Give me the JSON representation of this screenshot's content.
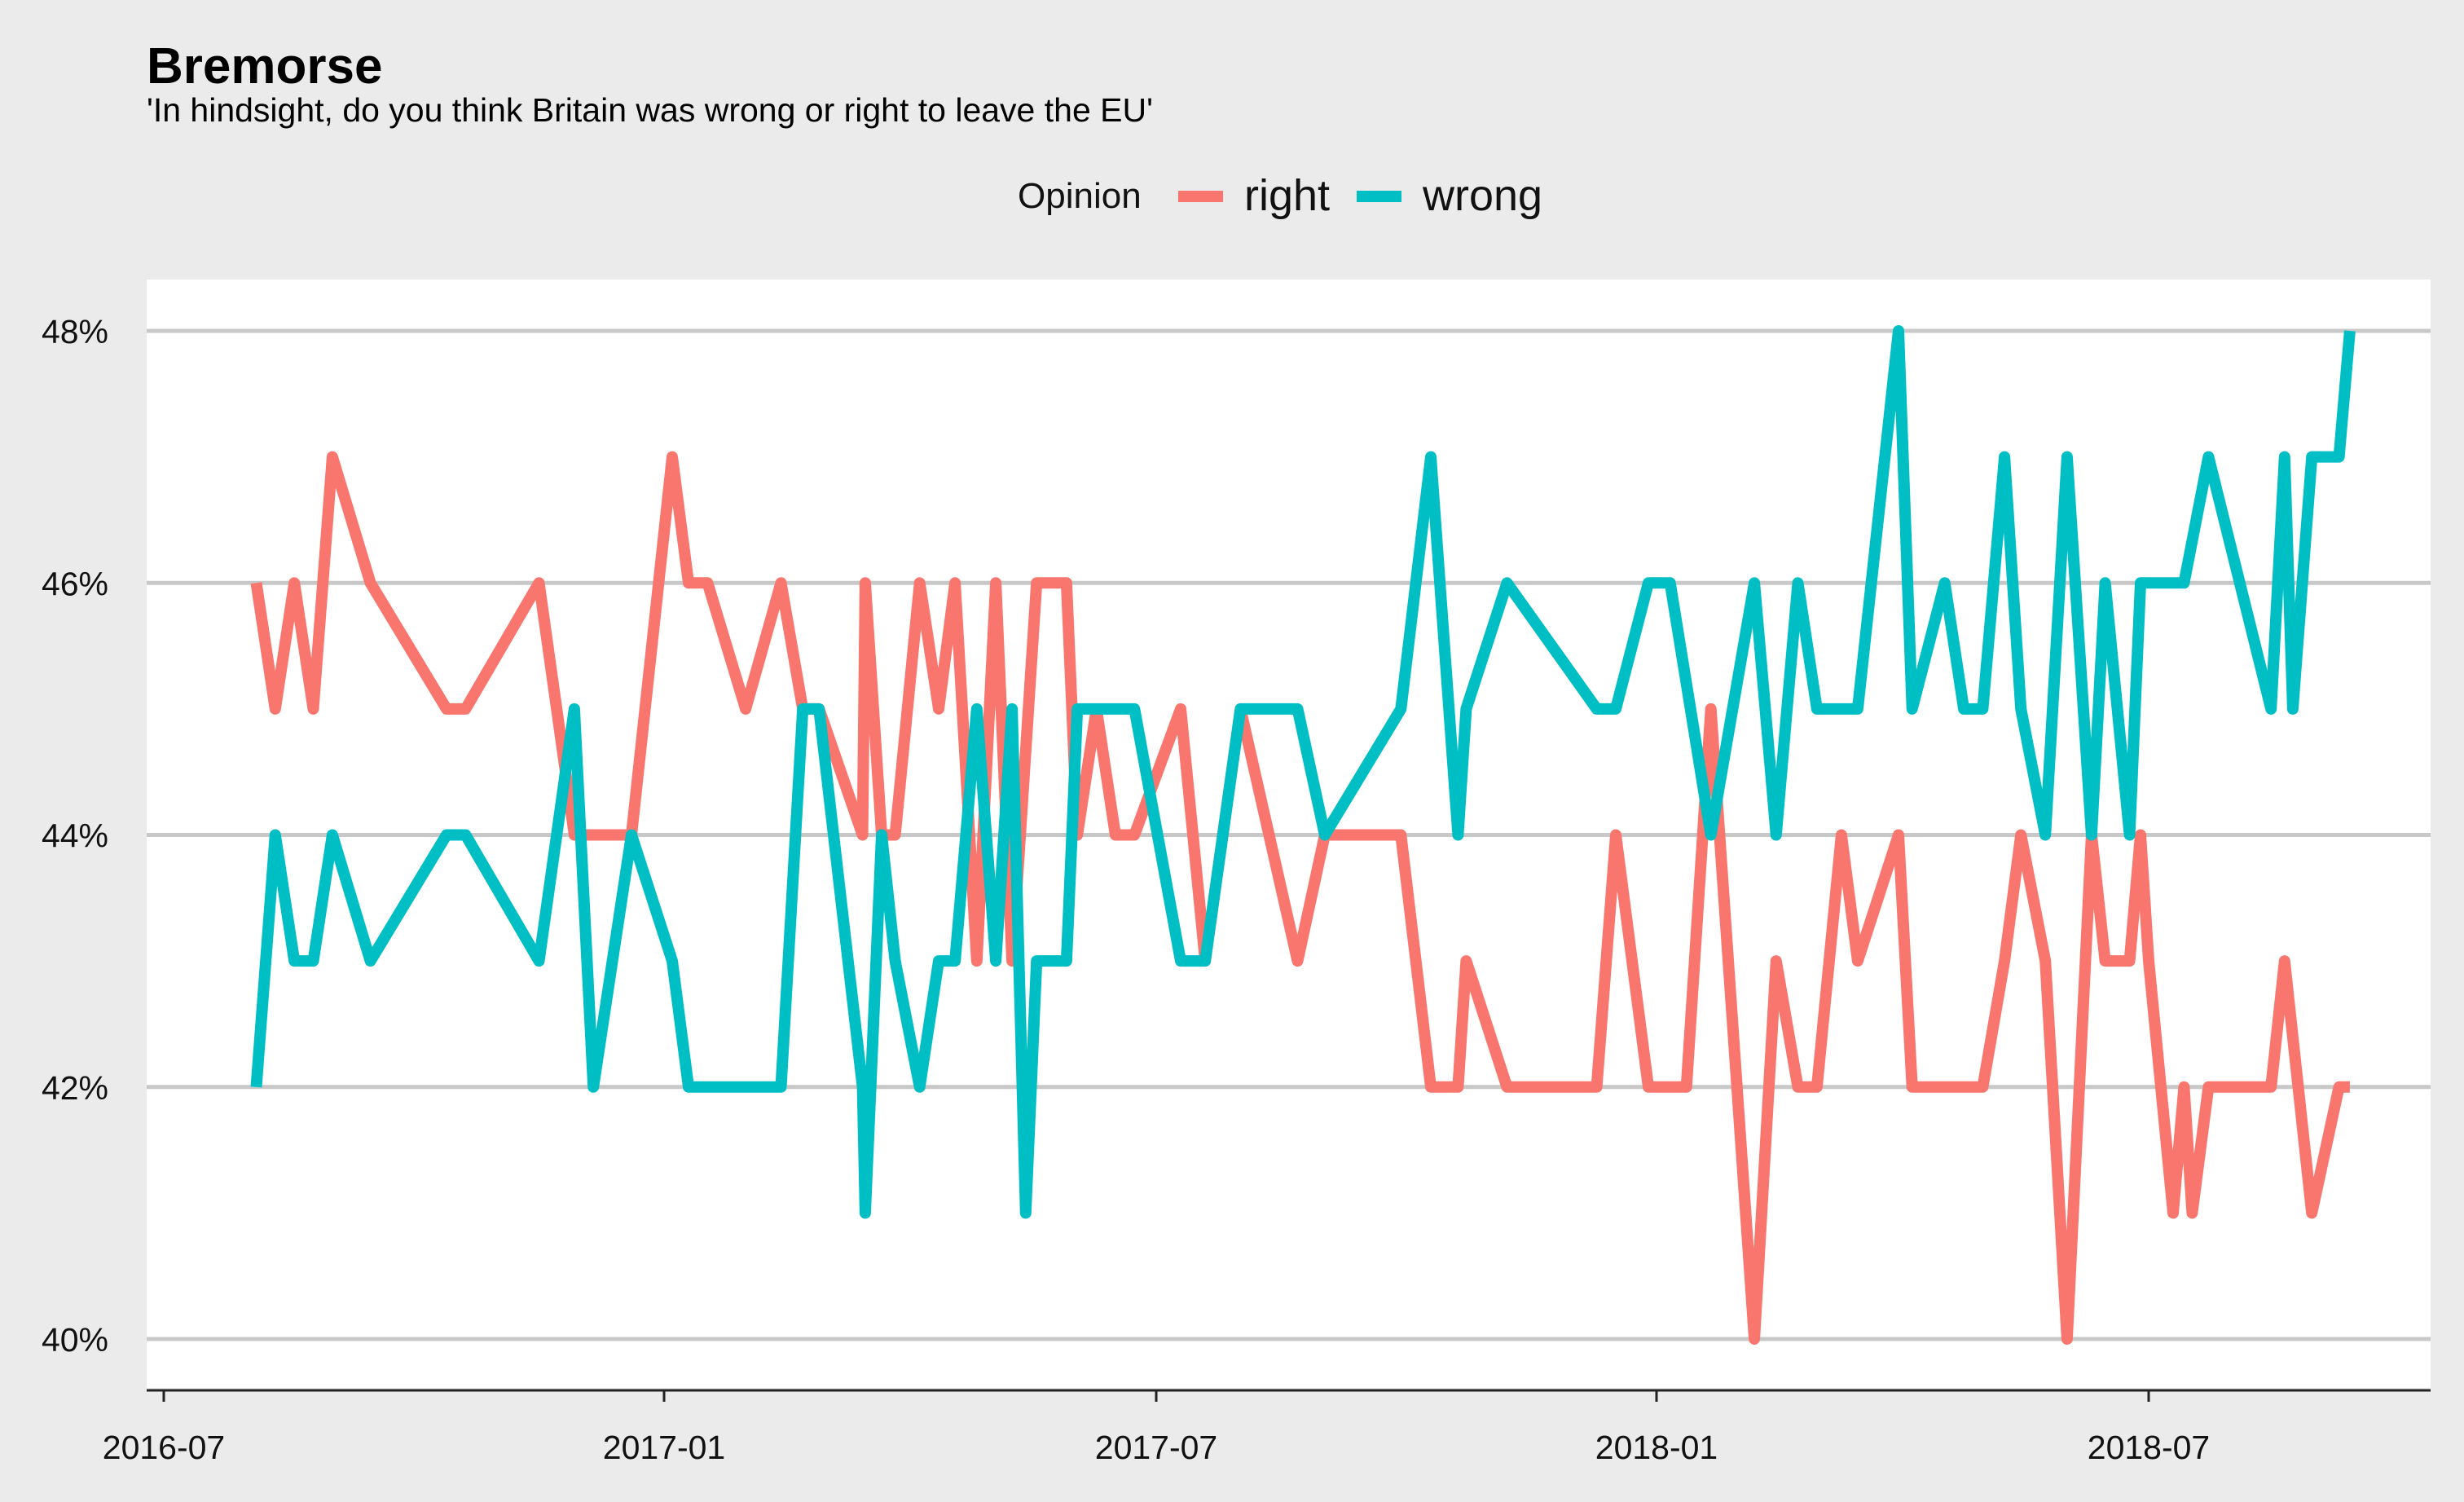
{
  "chart_data": {
    "type": "line",
    "title": "Bremorse",
    "subtitle": "'In hindsight, do you think Britain was wrong or right to leave the EU'",
    "xlabel": "",
    "ylabel": "",
    "ylim": [
      40,
      48
    ],
    "xlim": [
      "2016-07-01",
      "2018-11-15"
    ],
    "y_ticks": [
      40,
      42,
      44,
      46,
      48
    ],
    "y_tick_labels": [
      "40%",
      "42%",
      "44%",
      "46%",
      "48%"
    ],
    "x_ticks": [
      "2016-07-01",
      "2017-01-01",
      "2017-07-01",
      "2018-01-01",
      "2018-07-01"
    ],
    "x_tick_labels": [
      "2016-07",
      "2017-01",
      "2017-07",
      "2018-01",
      "2018-07"
    ],
    "grid": "horizontal",
    "legend": {
      "title": "Opinion",
      "position": "top"
    },
    "series": [
      {
        "name": "right",
        "color": "#F8766D",
        "points": [
          [
            "2016-08-04",
            46
          ],
          [
            "2016-08-11",
            45
          ],
          [
            "2016-08-18",
            46
          ],
          [
            "2016-08-25",
            45
          ],
          [
            "2016-09-01",
            47
          ],
          [
            "2016-09-15",
            46
          ],
          [
            "2016-10-13",
            45
          ],
          [
            "2016-10-20",
            45
          ],
          [
            "2016-11-16",
            46
          ],
          [
            "2016-11-29",
            44
          ],
          [
            "2016-12-06",
            44
          ],
          [
            "2016-12-20",
            44
          ],
          [
            "2017-01-04",
            47
          ],
          [
            "2017-01-10",
            46
          ],
          [
            "2017-01-17",
            46
          ],
          [
            "2017-01-31",
            45
          ],
          [
            "2017-02-13",
            46
          ],
          [
            "2017-02-21",
            45
          ],
          [
            "2017-02-27",
            45
          ],
          [
            "2017-03-15",
            44
          ],
          [
            "2017-03-16",
            46
          ],
          [
            "2017-03-22",
            44
          ],
          [
            "2017-03-27",
            44
          ],
          [
            "2017-04-05",
            46
          ],
          [
            "2017-04-12",
            45
          ],
          [
            "2017-04-18",
            46
          ],
          [
            "2017-04-26",
            43
          ],
          [
            "2017-05-03",
            46
          ],
          [
            "2017-05-09",
            43
          ],
          [
            "2017-05-18",
            46
          ],
          [
            "2017-05-29",
            46
          ],
          [
            "2017-06-02",
            44
          ],
          [
            "2017-06-09",
            45
          ],
          [
            "2017-06-16",
            44
          ],
          [
            "2017-06-23",
            44
          ],
          [
            "2017-07-10",
            45
          ],
          [
            "2017-07-19",
            43
          ],
          [
            "2017-08-01",
            45
          ],
          [
            "2017-08-22",
            43
          ],
          [
            "2017-09-01",
            44
          ],
          [
            "2017-09-29",
            44
          ],
          [
            "2017-10-10",
            42
          ],
          [
            "2017-10-20",
            42
          ],
          [
            "2017-10-23",
            43
          ],
          [
            "2017-11-07",
            42
          ],
          [
            "2017-12-10",
            42
          ],
          [
            "2017-12-17",
            44
          ],
          [
            "2017-12-29",
            42
          ],
          [
            "2018-01-12",
            42
          ],
          [
            "2018-01-21",
            45
          ],
          [
            "2018-02-06",
            40
          ],
          [
            "2018-02-14",
            43
          ],
          [
            "2018-02-22",
            42
          ],
          [
            "2018-03-01",
            42
          ],
          [
            "2018-03-10",
            44
          ],
          [
            "2018-03-16",
            43
          ],
          [
            "2018-03-31",
            44
          ],
          [
            "2018-04-05",
            42
          ],
          [
            "2018-05-01",
            42
          ],
          [
            "2018-05-09",
            43
          ],
          [
            "2018-05-15",
            44
          ],
          [
            "2018-05-24",
            43
          ],
          [
            "2018-06-01",
            40
          ],
          [
            "2018-06-10",
            44
          ],
          [
            "2018-06-15",
            43
          ],
          [
            "2018-06-24",
            43
          ],
          [
            "2018-06-28",
            44
          ],
          [
            "2018-07-01",
            43
          ],
          [
            "2018-07-10",
            41
          ],
          [
            "2018-07-14",
            42
          ],
          [
            "2018-07-17",
            41
          ],
          [
            "2018-07-23",
            42
          ],
          [
            "2018-08-15",
            42
          ],
          [
            "2018-08-20",
            43
          ],
          [
            "2018-08-30",
            41
          ],
          [
            "2018-09-09",
            42
          ],
          [
            "2018-09-13",
            42
          ]
        ]
      },
      {
        "name": "wrong",
        "color": "#00BFC4",
        "points": [
          [
            "2016-08-04",
            42
          ],
          [
            "2016-08-11",
            44
          ],
          [
            "2016-08-18",
            43
          ],
          [
            "2016-08-25",
            43
          ],
          [
            "2016-09-01",
            44
          ],
          [
            "2016-09-15",
            43
          ],
          [
            "2016-10-13",
            44
          ],
          [
            "2016-10-20",
            44
          ],
          [
            "2016-11-16",
            43
          ],
          [
            "2016-11-29",
            45
          ],
          [
            "2016-12-06",
            42
          ],
          [
            "2016-12-20",
            44
          ],
          [
            "2017-01-04",
            43
          ],
          [
            "2017-01-10",
            42
          ],
          [
            "2017-01-17",
            42
          ],
          [
            "2017-01-31",
            42
          ],
          [
            "2017-02-13",
            42
          ],
          [
            "2017-02-21",
            45
          ],
          [
            "2017-02-27",
            45
          ],
          [
            "2017-03-15",
            42
          ],
          [
            "2017-03-16",
            41
          ],
          [
            "2017-03-22",
            44
          ],
          [
            "2017-03-27",
            43
          ],
          [
            "2017-04-05",
            42
          ],
          [
            "2017-04-12",
            43
          ],
          [
            "2017-04-18",
            43
          ],
          [
            "2017-04-26",
            45
          ],
          [
            "2017-05-03",
            43
          ],
          [
            "2017-05-09",
            45
          ],
          [
            "2017-05-14",
            41
          ],
          [
            "2017-05-18",
            43
          ],
          [
            "2017-05-29",
            43
          ],
          [
            "2017-06-02",
            45
          ],
          [
            "2017-06-09",
            45
          ],
          [
            "2017-06-16",
            45
          ],
          [
            "2017-06-23",
            45
          ],
          [
            "2017-07-10",
            43
          ],
          [
            "2017-07-19",
            43
          ],
          [
            "2017-08-01",
            45
          ],
          [
            "2017-08-22",
            45
          ],
          [
            "2017-09-01",
            44
          ],
          [
            "2017-09-29",
            45
          ],
          [
            "2017-10-10",
            47
          ],
          [
            "2017-10-20",
            44
          ],
          [
            "2017-10-23",
            45
          ],
          [
            "2017-11-07",
            46
          ],
          [
            "2017-12-10",
            45
          ],
          [
            "2017-12-17",
            45
          ],
          [
            "2017-12-29",
            46
          ],
          [
            "2018-01-06",
            46
          ],
          [
            "2018-01-21",
            44
          ],
          [
            "2018-02-06",
            46
          ],
          [
            "2018-02-14",
            44
          ],
          [
            "2018-02-22",
            46
          ],
          [
            "2018-03-01",
            45
          ],
          [
            "2018-03-16",
            45
          ],
          [
            "2018-03-31",
            48
          ],
          [
            "2018-04-05",
            45
          ],
          [
            "2018-04-17",
            46
          ],
          [
            "2018-04-24",
            45
          ],
          [
            "2018-05-01",
            45
          ],
          [
            "2018-05-09",
            47
          ],
          [
            "2018-05-15",
            45
          ],
          [
            "2018-05-24",
            44
          ],
          [
            "2018-06-01",
            47
          ],
          [
            "2018-06-10",
            44
          ],
          [
            "2018-06-15",
            46
          ],
          [
            "2018-06-24",
            44
          ],
          [
            "2018-06-28",
            46
          ],
          [
            "2018-07-01",
            46
          ],
          [
            "2018-07-10",
            46
          ],
          [
            "2018-07-14",
            46
          ],
          [
            "2018-07-23",
            47
          ],
          [
            "2018-08-15",
            45
          ],
          [
            "2018-08-20",
            47
          ],
          [
            "2018-08-23",
            45
          ],
          [
            "2018-08-30",
            47
          ],
          [
            "2018-09-09",
            47
          ],
          [
            "2018-09-13",
            48
          ]
        ]
      }
    ]
  }
}
